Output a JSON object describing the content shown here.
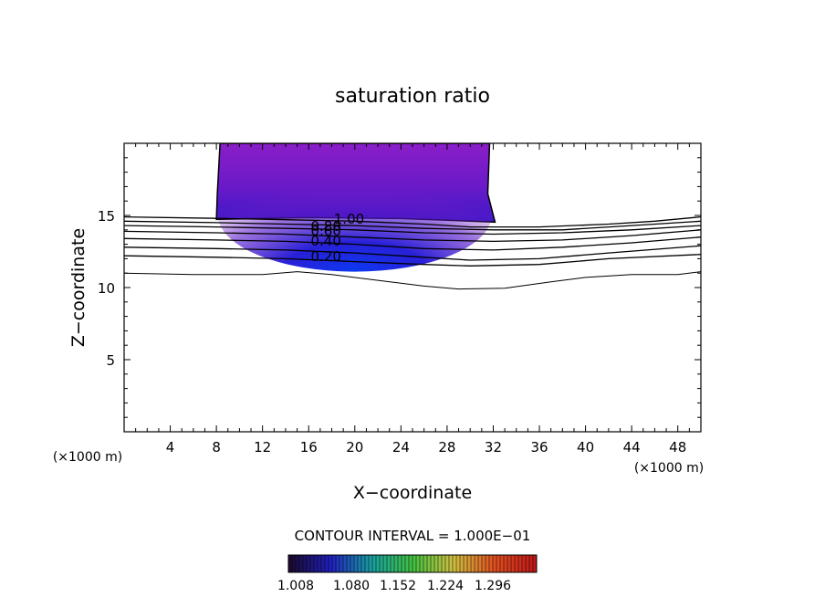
{
  "chart_data": {
    "type": "contour",
    "title": "saturation ratio",
    "xlabel": "X−coordinate",
    "ylabel": "Z−coordinate",
    "x_unit": "(×1000 m)",
    "y_unit": "(×1000 m)",
    "xlim": [
      0,
      50
    ],
    "ylim": [
      0,
      20
    ],
    "x_ticks": [
      4,
      8,
      12,
      16,
      20,
      24,
      28,
      32,
      36,
      40,
      44,
      48
    ],
    "y_ticks": [
      5,
      10,
      15
    ],
    "contour_interval_label": "CONTOUR INTERVAL = 1.000E−01",
    "contour_labels": [
      {
        "text": "1.00",
        "x": 19.5,
        "z": 14.8
      },
      {
        "text": "0.80",
        "x": 17.5,
        "z": 14.3
      },
      {
        "text": "0.60",
        "x": 17.5,
        "z": 14.0
      },
      {
        "text": "0.40",
        "x": 17.5,
        "z": 13.3
      },
      {
        "text": "0.20",
        "x": 17.5,
        "z": 12.2
      }
    ],
    "contour_lines": [
      {
        "points": [
          [
            0,
            14.9
          ],
          [
            8,
            14.8
          ],
          [
            14,
            14.7
          ],
          [
            20,
            14.6
          ],
          [
            26,
            14.4
          ],
          [
            30,
            14.2
          ],
          [
            36,
            14.2
          ],
          [
            42,
            14.4
          ],
          [
            46,
            14.6
          ],
          [
            50,
            14.9
          ]
        ]
      },
      {
        "points": [
          [
            0,
            14.6
          ],
          [
            8,
            14.5
          ],
          [
            14,
            14.4
          ],
          [
            20,
            14.3
          ],
          [
            26,
            14.1
          ],
          [
            32,
            14.0
          ],
          [
            38,
            14.0
          ],
          [
            44,
            14.3
          ],
          [
            50,
            14.6
          ]
        ]
      },
      {
        "points": [
          [
            0,
            14.3
          ],
          [
            8,
            14.2
          ],
          [
            14,
            14.1
          ],
          [
            20,
            14.0
          ],
          [
            26,
            13.8
          ],
          [
            32,
            13.7
          ],
          [
            38,
            13.8
          ],
          [
            44,
            14.0
          ],
          [
            50,
            14.3
          ]
        ]
      },
      {
        "points": [
          [
            0,
            13.9
          ],
          [
            8,
            13.8
          ],
          [
            14,
            13.7
          ],
          [
            20,
            13.5
          ],
          [
            26,
            13.3
          ],
          [
            32,
            13.2
          ],
          [
            38,
            13.3
          ],
          [
            44,
            13.6
          ],
          [
            50,
            14.0
          ]
        ]
      },
      {
        "points": [
          [
            0,
            13.4
          ],
          [
            8,
            13.3
          ],
          [
            14,
            13.2
          ],
          [
            20,
            13.0
          ],
          [
            26,
            12.7
          ],
          [
            32,
            12.6
          ],
          [
            38,
            12.8
          ],
          [
            44,
            13.1
          ],
          [
            50,
            13.5
          ]
        ]
      },
      {
        "points": [
          [
            0,
            12.8
          ],
          [
            8,
            12.7
          ],
          [
            14,
            12.6
          ],
          [
            20,
            12.4
          ],
          [
            26,
            12.1
          ],
          [
            30,
            11.9
          ],
          [
            36,
            12.0
          ],
          [
            42,
            12.4
          ],
          [
            50,
            12.9
          ]
        ]
      },
      {
        "points": [
          [
            0,
            12.2
          ],
          [
            8,
            12.1
          ],
          [
            14,
            12.0
          ],
          [
            20,
            11.8
          ],
          [
            26,
            11.6
          ],
          [
            30,
            11.5
          ],
          [
            36,
            11.6
          ],
          [
            42,
            12.0
          ],
          [
            50,
            12.3
          ]
        ]
      },
      {
        "points": [
          [
            0,
            11.0
          ],
          [
            6,
            10.9
          ],
          [
            12,
            10.9
          ],
          [
            15,
            11.1
          ],
          [
            18,
            10.9
          ],
          [
            22,
            10.5
          ],
          [
            26,
            10.1
          ],
          [
            29,
            9.9
          ],
          [
            33,
            9.95
          ],
          [
            37,
            10.4
          ],
          [
            40,
            10.7
          ],
          [
            44,
            10.9
          ],
          [
            48,
            10.9
          ],
          [
            50,
            11.1
          ]
        ]
      }
    ],
    "filled_region": {
      "x_range": [
        8,
        32
      ],
      "z_range": [
        14.6,
        20
      ],
      "core": {
        "x": 20,
        "z": 14.9
      }
    },
    "colorbar": {
      "ticks": [
        "1.008",
        "1.080",
        "1.152",
        "1.224",
        "1.296"
      ],
      "colors": [
        "#1a0a30",
        "#2020c0",
        "#18a0a0",
        "#40c040",
        "#d0c040",
        "#e05020",
        "#c01818"
      ]
    },
    "colors": {
      "region_outer": "#8a1ec8",
      "region_mid": "#5a18c0",
      "region_core": "#1030e8"
    }
  }
}
